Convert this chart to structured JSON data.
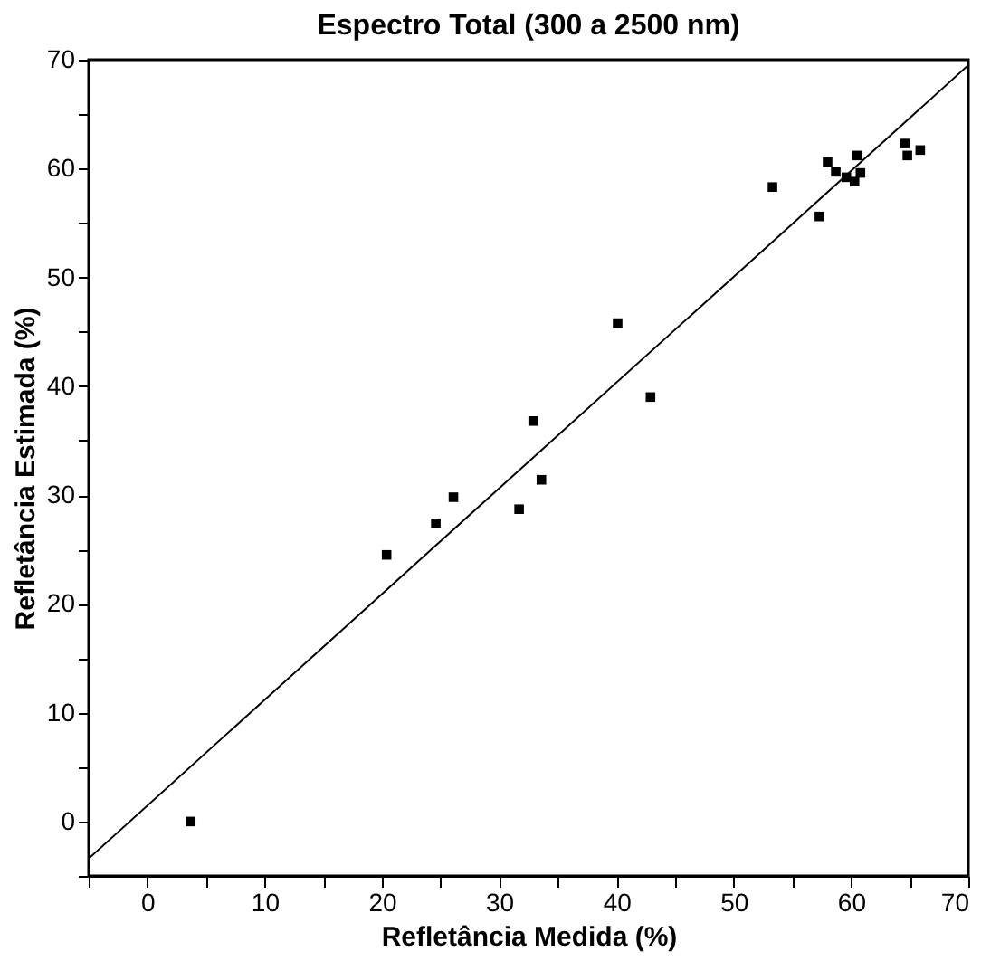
{
  "chart_data": {
    "type": "scatter",
    "title": "Espectro Total (300 a 2500 nm)",
    "xlabel": "Refletância Medida (%)",
    "ylabel": "Refletância Estimada (%)",
    "xlim": [
      -5,
      70
    ],
    "ylim": [
      -5,
      70
    ],
    "xticks": [
      {
        "value": -5,
        "label": null
      },
      0,
      {
        "value": 5,
        "label": null
      },
      10,
      {
        "value": 15,
        "label": null
      },
      20,
      {
        "value": 25,
        "label": null
      },
      30,
      {
        "value": 35,
        "label": null
      },
      40,
      {
        "value": 45,
        "label": null
      },
      50,
      {
        "value": 55,
        "label": null
      },
      60,
      {
        "value": 65,
        "label": null
      },
      70
    ],
    "yticks": [
      {
        "value": -5,
        "label": null
      },
      0,
      {
        "value": 5,
        "label": null
      },
      10,
      {
        "value": 15,
        "label": null
      },
      20,
      {
        "value": 25,
        "label": null
      },
      30,
      {
        "value": 35,
        "label": null
      },
      40,
      {
        "value": 45,
        "label": null
      },
      50,
      {
        "value": 55,
        "label": null
      },
      60,
      {
        "value": 65,
        "label": null
      },
      70
    ],
    "grid": false,
    "marker": "square",
    "series": [
      {
        "type": "scatter",
        "color": "#000000",
        "x": [
          3.7,
          20.4,
          24.6,
          26.1,
          31.7,
          33.6,
          32.9,
          40.1,
          42.9,
          53.3,
          57.3,
          58.0,
          58.7,
          59.6,
          60.5,
          60.8,
          60.3,
          64.6,
          65.9,
          64.8
        ],
        "values": [
          0,
          24.5,
          27.4,
          29.8,
          28.7,
          31.4,
          36.8,
          45.8,
          39.0,
          58.3,
          55.6,
          60.6,
          59.7,
          59.2,
          61.2,
          59.6,
          58.8,
          62.3,
          61.7,
          61.2
        ]
      },
      {
        "type": "line",
        "color": "#000000",
        "marker": "none",
        "line_style": "solid",
        "x": [
          -5,
          70
        ],
        "values": [
          -3.4,
          69.5
        ]
      }
    ]
  }
}
